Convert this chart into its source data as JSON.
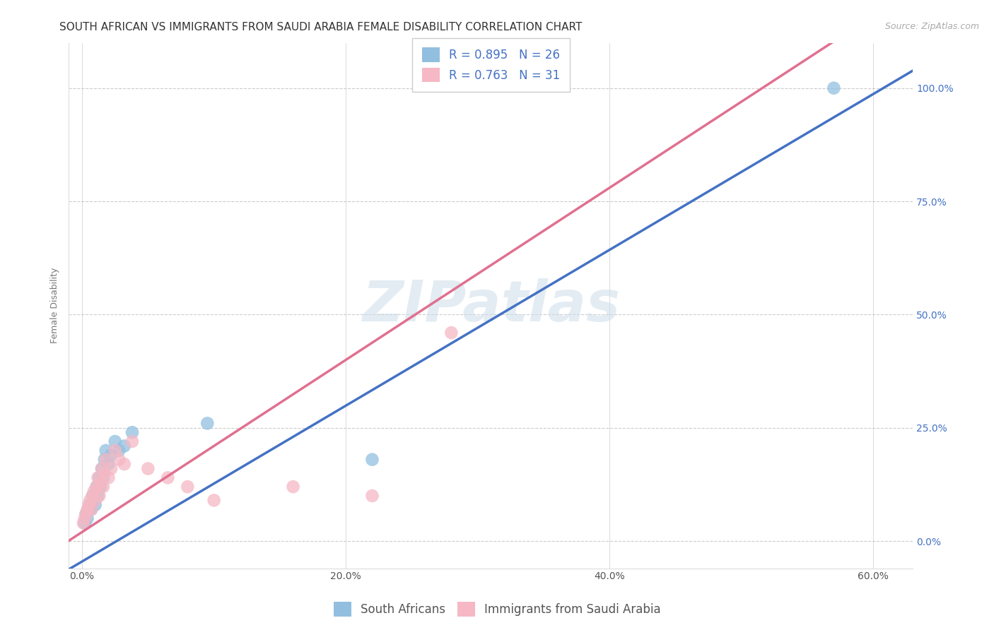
{
  "title": "SOUTH AFRICAN VS IMMIGRANTS FROM SAUDI ARABIA FEMALE DISABILITY CORRELATION CHART",
  "source": "Source: ZipAtlas.com",
  "xlabel_ticks": [
    "0.0%",
    "20.0%",
    "40.0%",
    "60.0%"
  ],
  "xlabel_tick_vals": [
    0.0,
    0.2,
    0.4,
    0.6
  ],
  "ylabel_ticks": [
    "0.0%",
    "25.0%",
    "50.0%",
    "75.0%",
    "100.0%"
  ],
  "ylabel_tick_vals": [
    0.0,
    0.25,
    0.5,
    0.75,
    1.0
  ],
  "ylabel": "Female Disability",
  "xlim": [
    -0.01,
    0.63
  ],
  "ylim": [
    -0.06,
    1.1
  ],
  "blue_color": "#92bfdf",
  "pink_color": "#f5b8c4",
  "blue_line_color": "#4472c4",
  "pink_line_color": "#e07090",
  "grid_color": "#cccccc",
  "watermark_text": "ZIPatlas",
  "legend_label_blue": "South Africans",
  "legend_label_pink": "Immigrants from Saudi Arabia",
  "legend_R_blue": "0.895",
  "legend_N_blue": "26",
  "legend_R_pink": "0.763",
  "legend_N_pink": "31",
  "title_fontsize": 11,
  "source_fontsize": 9,
  "ylabel_fontsize": 9,
  "tick_fontsize": 10,
  "legend_fontsize": 12,
  "blue_line_slope": 1.72,
  "blue_line_intercept": -0.045,
  "pink_line_slope": 1.9,
  "pink_line_intercept": 0.02,
  "blue_x": [
    0.002,
    0.003,
    0.004,
    0.005,
    0.006,
    0.007,
    0.008,
    0.009,
    0.01,
    0.011,
    0.012,
    0.013,
    0.014,
    0.015,
    0.016,
    0.017,
    0.018,
    0.02,
    0.022,
    0.025,
    0.028,
    0.032,
    0.038,
    0.095,
    0.22,
    0.57
  ],
  "blue_y": [
    0.04,
    0.06,
    0.05,
    0.07,
    0.08,
    0.07,
    0.1,
    0.09,
    0.08,
    0.12,
    0.1,
    0.14,
    0.12,
    0.16,
    0.14,
    0.18,
    0.2,
    0.17,
    0.19,
    0.22,
    0.2,
    0.21,
    0.24,
    0.26,
    0.18,
    1.0
  ],
  "pink_x": [
    0.001,
    0.002,
    0.003,
    0.004,
    0.005,
    0.006,
    0.007,
    0.008,
    0.009,
    0.01,
    0.011,
    0.012,
    0.013,
    0.014,
    0.015,
    0.016,
    0.017,
    0.018,
    0.02,
    0.022,
    0.025,
    0.028,
    0.032,
    0.038,
    0.05,
    0.065,
    0.08,
    0.1,
    0.16,
    0.22,
    0.28
  ],
  "pink_y": [
    0.04,
    0.05,
    0.06,
    0.07,
    0.08,
    0.09,
    0.07,
    0.1,
    0.11,
    0.09,
    0.12,
    0.14,
    0.1,
    0.13,
    0.16,
    0.12,
    0.15,
    0.18,
    0.14,
    0.16,
    0.2,
    0.18,
    0.17,
    0.22,
    0.16,
    0.14,
    0.12,
    0.09,
    0.12,
    0.1,
    0.46
  ]
}
